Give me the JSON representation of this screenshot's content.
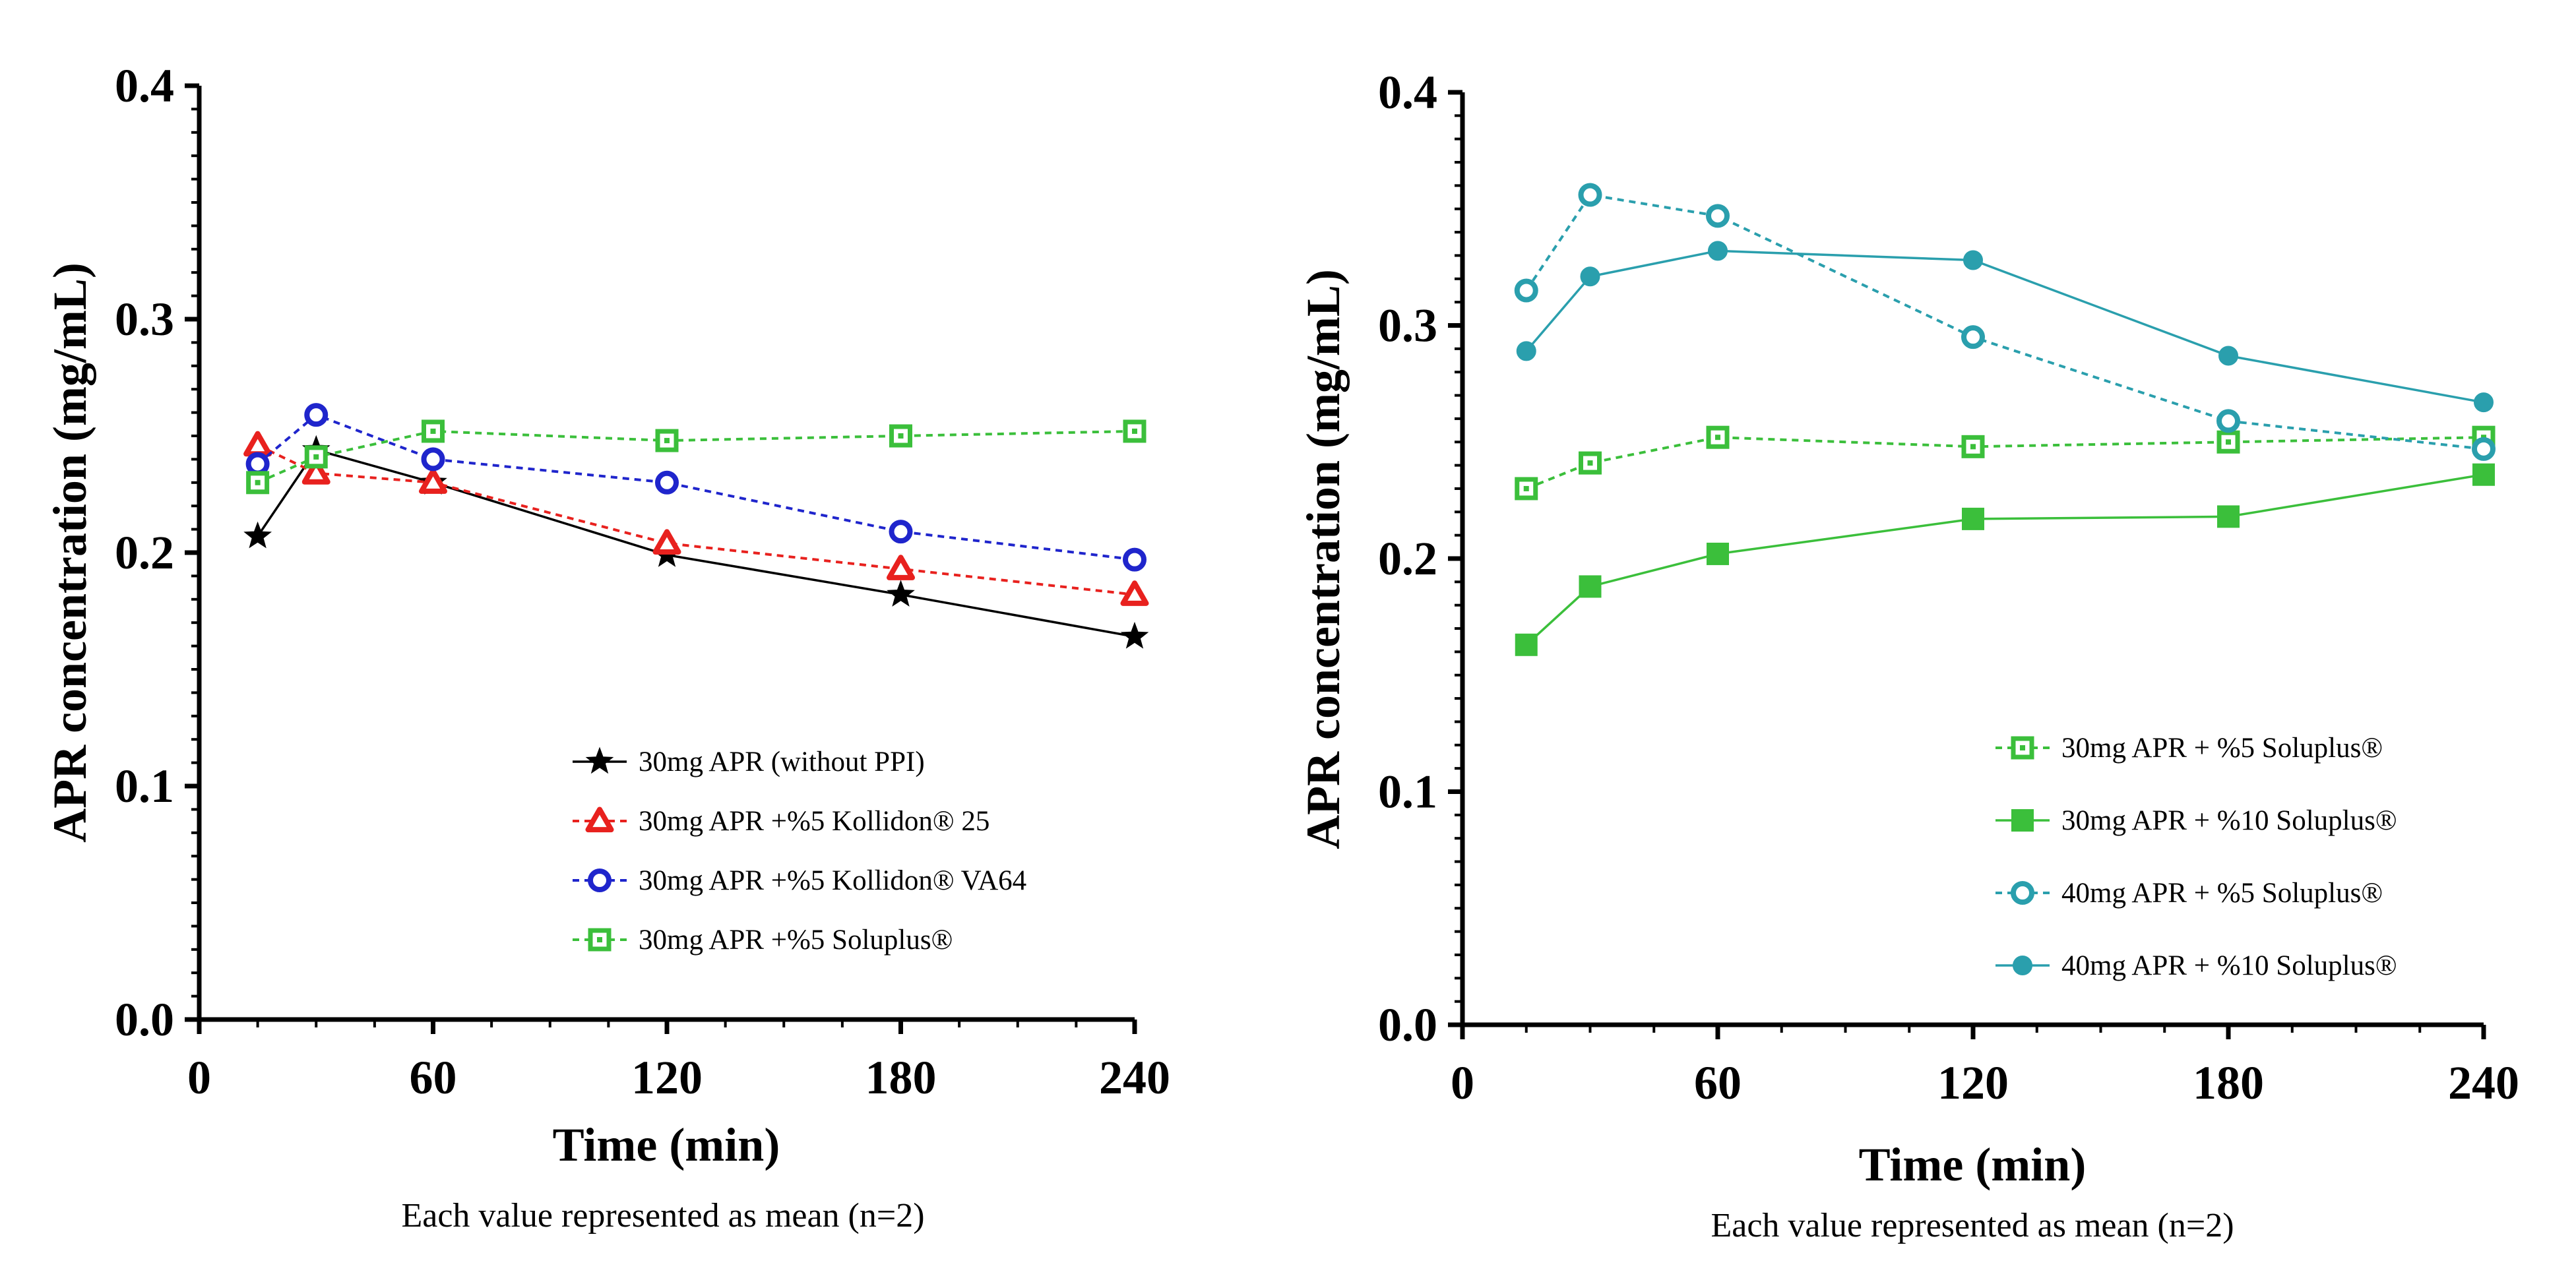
{
  "chart_data": [
    {
      "type": "line",
      "xlabel": "Time (min)",
      "ylabel": "APR concentration (mg/mL)",
      "note": "Each value represented as mean (n=2)",
      "xlim": [
        0,
        240
      ],
      "ylim": [
        0,
        0.4
      ],
      "x_ticks": [
        "0",
        "60",
        "120",
        "180",
        "240"
      ],
      "y_ticks": [
        "0.0",
        "0.1",
        "0.2",
        "0.3",
        "0.4"
      ],
      "legend_position": "lower-right",
      "series": [
        {
          "name": "30mg APR (without PPI)",
          "color": "#000000",
          "marker": "star",
          "dashed": false,
          "filled": true,
          "x": [
            15,
            30,
            60,
            120,
            180,
            240
          ],
          "y": [
            0.207,
            0.244,
            0.23,
            0.199,
            0.182,
            0.164
          ]
        },
        {
          "name": "30mg APR +%5 Kollidon® 25",
          "color": "#e8211e",
          "marker": "triangle",
          "dashed": true,
          "filled": false,
          "x": [
            15,
            30,
            60,
            120,
            180,
            240
          ],
          "y": [
            0.246,
            0.234,
            0.23,
            0.204,
            0.193,
            0.182
          ]
        },
        {
          "name": "30mg APR +%5 Kollidon® VA64",
          "color": "#1f25cc",
          "marker": "circle",
          "dashed": true,
          "filled": false,
          "x": [
            15,
            30,
            60,
            120,
            180,
            240
          ],
          "y": [
            0.238,
            0.259,
            0.24,
            0.23,
            0.209,
            0.197
          ]
        },
        {
          "name": "30mg APR +%5 Soluplus®",
          "color": "#3bbf3b",
          "marker": "square",
          "dashed": true,
          "filled": false,
          "x": [
            15,
            30,
            60,
            120,
            180,
            240
          ],
          "y": [
            0.23,
            0.241,
            0.252,
            0.248,
            0.25,
            0.252
          ]
        }
      ]
    },
    {
      "type": "line",
      "xlabel": "Time (min)",
      "ylabel": "APR concentration (mg/mL)",
      "note": "Each value represented as mean (n=2)",
      "xlim": [
        0,
        240
      ],
      "ylim": [
        0,
        0.4
      ],
      "x_ticks": [
        "0",
        "60",
        "120",
        "180",
        "240"
      ],
      "y_ticks": [
        "0.0",
        "0.1",
        "0.2",
        "0.3",
        "0.4"
      ],
      "legend_position": "lower-right",
      "series": [
        {
          "name": "30mg APR + %5 Soluplus®",
          "color": "#3bbf3b",
          "marker": "square",
          "dashed": true,
          "filled": false,
          "x": [
            15,
            30,
            60,
            120,
            180,
            240
          ],
          "y": [
            0.23,
            0.241,
            0.252,
            0.248,
            0.25,
            0.252
          ]
        },
        {
          "name": "30mg APR + %10 Soluplus®",
          "color": "#3bbf3b",
          "marker": "square",
          "dashed": false,
          "filled": true,
          "x": [
            15,
            30,
            60,
            120,
            180,
            240
          ],
          "y": [
            0.163,
            0.188,
            0.202,
            0.217,
            0.218,
            0.236
          ]
        },
        {
          "name": "40mg APR + %5 Soluplus®",
          "color": "#2a9fad",
          "marker": "circle",
          "dashed": true,
          "filled": false,
          "x": [
            15,
            30,
            60,
            120,
            180,
            240
          ],
          "y": [
            0.315,
            0.356,
            0.347,
            0.295,
            0.259,
            0.247
          ]
        },
        {
          "name": "40mg APR + %10 Soluplus®",
          "color": "#2a9fad",
          "marker": "circle",
          "dashed": false,
          "filled": true,
          "x": [
            15,
            30,
            60,
            120,
            180,
            240
          ],
          "y": [
            0.289,
            0.321,
            0.332,
            0.328,
            0.287,
            0.267
          ]
        }
      ]
    }
  ]
}
